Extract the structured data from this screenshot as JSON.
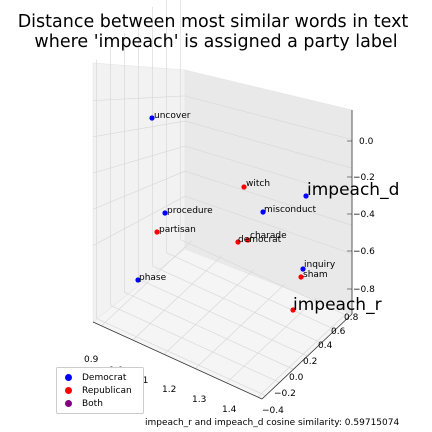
{
  "chart_data": {
    "type": "scatter",
    "title_lines": [
      "Distance between most similar words in text",
      "where 'impeach' is assigned a party label"
    ],
    "x_ticks": [
      "0.9",
      "1.0",
      "1.1",
      "1.2",
      "1.3",
      "1.4"
    ],
    "y_ticks": [
      "−0.4",
      "−0.2",
      "0.0",
      "0.2",
      "0.4",
      "0.6",
      "0.8"
    ],
    "z_ticks": [
      "0.0",
      "−0.2",
      "−0.4",
      "−0.6",
      "−0.8"
    ],
    "colors": {
      "Democrat": "#0000ff",
      "Republican": "#ff0000",
      "Both": "#800080"
    },
    "points": [
      {
        "label": "uncover",
        "party": "Democrat",
        "size": "small"
      },
      {
        "label": "witch",
        "party": "Republican",
        "size": "small"
      },
      {
        "label": "impeach_d",
        "party": "Democrat",
        "size": "large"
      },
      {
        "label": "procedure",
        "party": "Democrat",
        "size": "small"
      },
      {
        "label": "misconduct",
        "party": "Democrat",
        "size": "small"
      },
      {
        "label": "partisan",
        "party": "Republican",
        "size": "small"
      },
      {
        "label": "democrat",
        "party": "Republican",
        "size": "small"
      },
      {
        "label": "charade",
        "party": "Republican",
        "size": "small"
      },
      {
        "label": "phase",
        "party": "Democrat",
        "size": "small"
      },
      {
        "label": "inquiry",
        "party": "Democrat",
        "size": "small"
      },
      {
        "label": "sham",
        "party": "Republican",
        "size": "small"
      },
      {
        "label": "impeach_r",
        "party": "Republican",
        "size": "large"
      }
    ],
    "legend": [
      "Democrat",
      "Republican",
      "Both"
    ],
    "legend_placement": "bottom-left",
    "footnote": "impeach_r and impeach_d cosine similarity: 0.59715074"
  }
}
